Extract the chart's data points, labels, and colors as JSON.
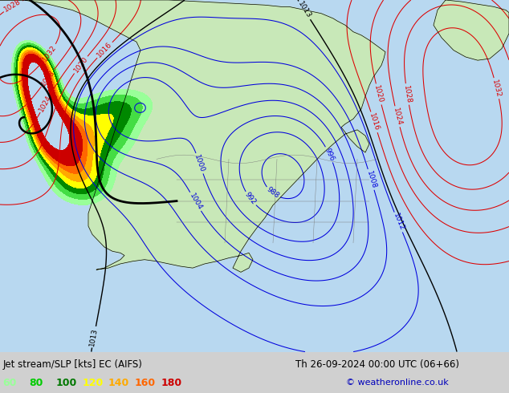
{
  "title_left": "Jet stream/SLP [kts] EC (AIFS)",
  "title_right": "Th 26-09-2024 00:00 UTC (06+66)",
  "copyright": "© weatheronline.co.uk",
  "legend_values": [
    60,
    80,
    100,
    120,
    140,
    160,
    180
  ],
  "legend_colors": [
    "#99ff99",
    "#00cc00",
    "#007700",
    "#ffff00",
    "#ffaa00",
    "#ff6600",
    "#cc0000"
  ],
  "bg_color": "#d0d0d0",
  "map_bg": "#cce0f0",
  "land_color": "#c8e8b8",
  "ocean_color": "#b8d8f0",
  "jet_fill_colors": [
    "#99ff99",
    "#44dd44",
    "#008800",
    "#ffff00",
    "#ffaa00",
    "#ff6600",
    "#cc0000"
  ],
  "jet_levels": [
    60,
    80,
    100,
    120,
    140,
    160,
    180,
    250
  ],
  "slp_color_low": "#0000dd",
  "slp_color_high": "#dd0000",
  "slp_color_black": "#000000",
  "figsize": [
    6.34,
    4.9
  ],
  "dpi": 100
}
